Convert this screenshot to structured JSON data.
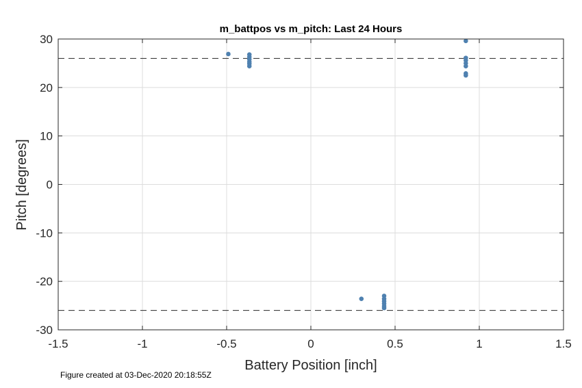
{
  "chart_data": {
    "type": "scatter",
    "title": "m_battpos vs m_pitch: Last 24 Hours",
    "xlabel": "Battery Position [inch]",
    "ylabel": "Pitch [degrees]",
    "xlim": [
      -1.5,
      1.5
    ],
    "ylim": [
      -30,
      30
    ],
    "xticks": [
      "-1.5",
      "-1",
      "-0.5",
      "0",
      "0.5",
      "1",
      "1.5"
    ],
    "yticks": [
      "30",
      "20",
      "10",
      "0",
      "-10",
      "-20",
      "-30"
    ],
    "grid": true,
    "reference_lines": [
      26,
      -26
    ],
    "marker_color": "#4f81b0",
    "series": [
      {
        "points": [
          [
            -0.49,
            26.9
          ],
          [
            -0.365,
            26.8
          ],
          [
            -0.365,
            26.3
          ],
          [
            -0.365,
            25.8
          ],
          [
            -0.365,
            25.3
          ],
          [
            -0.365,
            24.9
          ],
          [
            -0.365,
            24.4
          ],
          [
            0.3,
            -23.6
          ],
          [
            0.435,
            -23.0
          ],
          [
            0.435,
            -23.6
          ],
          [
            0.435,
            -24.1
          ],
          [
            0.435,
            -24.6
          ],
          [
            0.435,
            -25.1
          ],
          [
            0.435,
            -25.5
          ],
          [
            0.92,
            29.6
          ],
          [
            0.92,
            26.1
          ],
          [
            0.92,
            25.6
          ],
          [
            0.92,
            25.0
          ],
          [
            0.92,
            24.4
          ],
          [
            0.92,
            22.9
          ],
          [
            0.92,
            22.5
          ]
        ]
      }
    ]
  },
  "footer": {
    "text": "Figure created at 03-Dec-2020 20:18:55Z"
  }
}
